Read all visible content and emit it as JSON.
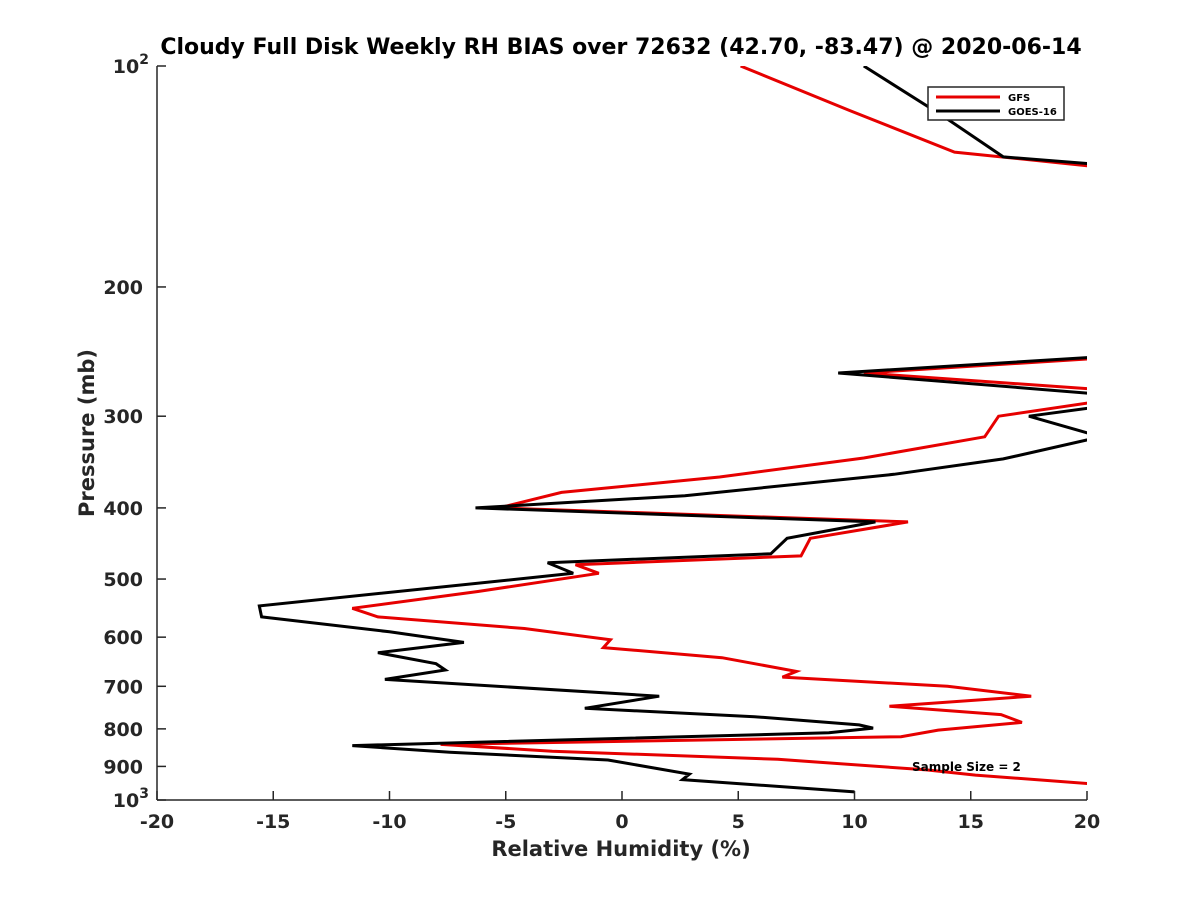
{
  "chart_data": {
    "type": "line",
    "title": "Cloudy Full Disk Weekly RH BIAS over 72632 (42.70, -83.47) @ 2020-06-14",
    "xlabel": "Relative Humidity (%)",
    "ylabel": "Pressure (mb)",
    "xlim": [
      -20,
      20
    ],
    "ylim": [
      100,
      1000
    ],
    "y_scale": "log",
    "y_reversed": true,
    "grid": false,
    "legend_position": "top-right",
    "x_ticks": [
      -20,
      -15,
      -10,
      -5,
      0,
      5,
      10,
      15,
      20
    ],
    "x_tick_labels": [
      "-20",
      "-15",
      "-10",
      "-5",
      "0",
      "5",
      "10",
      "15",
      "20"
    ],
    "y_ticks": [
      100,
      200,
      300,
      400,
      500,
      600,
      700,
      800,
      900,
      1000
    ],
    "y_tick_labels": [
      {
        "base": "10",
        "exp": "2"
      },
      {
        "base": "200"
      },
      {
        "base": "300"
      },
      {
        "base": "400"
      },
      {
        "base": "500"
      },
      {
        "base": "600"
      },
      {
        "base": "700"
      },
      {
        "base": "800"
      },
      {
        "base": "900"
      },
      {
        "base": "10",
        "exp": "3"
      }
    ],
    "annotation": "Sample Size = 2",
    "series": [
      {
        "name": "GFS",
        "color": "#e60000",
        "points": [
          [
            5.1,
            100
          ],
          [
            9.8,
            115
          ],
          [
            14.3,
            131
          ],
          [
            20.3,
            137
          ],
          [
            20.6,
            250
          ],
          [
            10.4,
            262
          ],
          [
            20.6,
            276
          ],
          [
            20.3,
            287
          ],
          [
            16.2,
            300
          ],
          [
            15.6,
            320
          ],
          [
            10.4,
            342
          ],
          [
            4.2,
            363
          ],
          [
            -2.6,
            381
          ],
          [
            -5.3,
            400
          ],
          [
            12.3,
            418
          ],
          [
            8.1,
            440
          ],
          [
            7.7,
            465
          ],
          [
            -2.0,
            478
          ],
          [
            -1.0,
            491
          ],
          [
            -6.2,
            520
          ],
          [
            -11.6,
            548
          ],
          [
            -10.5,
            563
          ],
          [
            -4.2,
            584
          ],
          [
            -0.5,
            605
          ],
          [
            -0.8,
            620
          ],
          [
            4.3,
            640
          ],
          [
            7.5,
            668
          ],
          [
            6.9,
            680
          ],
          [
            14.0,
            700
          ],
          [
            17.6,
            722
          ],
          [
            11.5,
            745
          ],
          [
            16.3,
            765
          ],
          [
            17.2,
            784
          ],
          [
            13.6,
            803
          ],
          [
            12.0,
            820
          ],
          [
            -7.8,
            840
          ],
          [
            -3.0,
            858
          ],
          [
            6.7,
            880
          ],
          [
            13.1,
            910
          ],
          [
            15.2,
            925
          ],
          [
            21.0,
            955
          ]
        ]
      },
      {
        "name": "GOES-16",
        "color": "#000000",
        "points": [
          [
            10.4,
            100
          ],
          [
            13.8,
            117
          ],
          [
            16.4,
            133
          ],
          [
            20.3,
            136
          ],
          [
            20.6,
            249
          ],
          [
            9.3,
            262
          ],
          [
            20.6,
            280
          ],
          [
            20.6,
            291
          ],
          [
            17.5,
            300
          ],
          [
            20.6,
            320
          ],
          [
            16.4,
            343
          ],
          [
            11.7,
            360
          ],
          [
            2.7,
            385
          ],
          [
            -6.3,
            400
          ],
          [
            10.9,
            418
          ],
          [
            7.1,
            440
          ],
          [
            6.4,
            462
          ],
          [
            -3.2,
            475
          ],
          [
            -2.1,
            491
          ],
          [
            -15.6,
            544
          ],
          [
            -15.5,
            563
          ],
          [
            -10.0,
            590
          ],
          [
            -6.8,
            610
          ],
          [
            -10.5,
            630
          ],
          [
            -8.0,
            652
          ],
          [
            -7.6,
            665
          ],
          [
            -10.2,
            685
          ],
          [
            1.6,
            722
          ],
          [
            -1.6,
            750
          ],
          [
            5.7,
            770
          ],
          [
            10.2,
            790
          ],
          [
            10.8,
            798
          ],
          [
            8.9,
            810
          ],
          [
            -11.6,
            843
          ],
          [
            -7.4,
            861
          ],
          [
            -0.6,
            882
          ],
          [
            2.9,
            922
          ],
          [
            2.6,
            938
          ],
          [
            10.0,
            975
          ]
        ]
      }
    ]
  }
}
